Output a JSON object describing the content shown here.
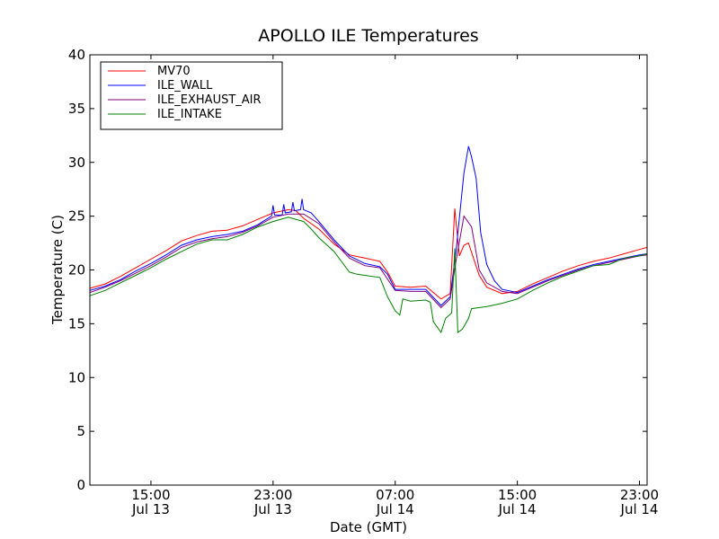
{
  "chart_data": {
    "type": "line",
    "title": "APOLLO ILE Temperatures",
    "xlabel": "Date (GMT)",
    "ylabel": "Temperature (C)",
    "xlim": [
      11,
      47.5
    ],
    "ylim": [
      0,
      40
    ],
    "yticks": [
      0,
      5,
      10,
      15,
      20,
      25,
      30,
      35,
      40
    ],
    "xticks": [
      {
        "value": 15,
        "line1": "15:00",
        "line2": "Jul 13"
      },
      {
        "value": 23,
        "line1": "23:00",
        "line2": "Jul 13"
      },
      {
        "value": 31,
        "line1": "07:00",
        "line2": "Jul 14"
      },
      {
        "value": 39,
        "line1": "15:00",
        "line2": "Jul 14"
      },
      {
        "value": 47,
        "line1": "23:00",
        "line2": "Jul 14"
      }
    ],
    "legend_position": "top-left",
    "series": [
      {
        "name": "MV70",
        "color": "#ff0000",
        "points": [
          [
            11,
            18.3
          ],
          [
            12,
            18.7
          ],
          [
            13,
            19.4
          ],
          [
            14,
            20.2
          ],
          [
            15,
            21
          ],
          [
            16,
            21.8
          ],
          [
            17,
            22.7
          ],
          [
            18,
            23.2
          ],
          [
            19,
            23.6
          ],
          [
            20,
            23.7
          ],
          [
            21,
            24.1
          ],
          [
            22,
            24.7
          ],
          [
            23,
            25.3
          ],
          [
            24,
            25.6
          ],
          [
            24.5,
            25.5
          ],
          [
            25,
            24.8
          ],
          [
            26,
            23.8
          ],
          [
            27,
            22.4
          ],
          [
            28,
            21.4
          ],
          [
            29,
            21.1
          ],
          [
            30,
            20.8
          ],
          [
            30.5,
            19.8
          ],
          [
            31,
            18.5
          ],
          [
            32,
            18.4
          ],
          [
            33,
            18.5
          ],
          [
            34,
            17.3
          ],
          [
            34.6,
            17.8
          ],
          [
            34.9,
            25.7
          ],
          [
            35.2,
            21.3
          ],
          [
            35.5,
            22.3
          ],
          [
            35.8,
            22.5
          ],
          [
            36.1,
            21.2
          ],
          [
            36.5,
            19.5
          ],
          [
            37,
            18.4
          ],
          [
            38,
            17.8
          ],
          [
            39,
            18
          ],
          [
            40,
            18.7
          ],
          [
            41,
            19.3
          ],
          [
            42,
            19.9
          ],
          [
            43,
            20.4
          ],
          [
            44,
            20.8
          ],
          [
            45,
            21.1
          ],
          [
            46,
            21.5
          ],
          [
            47,
            21.9
          ],
          [
            47.5,
            22.1
          ]
        ]
      },
      {
        "name": "ILE_WALL",
        "color": "#0000ff",
        "points": [
          [
            11,
            18.1
          ],
          [
            12,
            18.5
          ],
          [
            13,
            19.1
          ],
          [
            14,
            19.9
          ],
          [
            15,
            20.6
          ],
          [
            16,
            21.4
          ],
          [
            17,
            22.3
          ],
          [
            18,
            22.8
          ],
          [
            19,
            23.1
          ],
          [
            20,
            23.3
          ],
          [
            21,
            23.6
          ],
          [
            22,
            24.2
          ],
          [
            22.9,
            25
          ],
          [
            23,
            26
          ],
          [
            23.1,
            25.1
          ],
          [
            23.6,
            25.1
          ],
          [
            23.7,
            26.1
          ],
          [
            23.8,
            25.3
          ],
          [
            24.2,
            25.4
          ],
          [
            24.3,
            26.3
          ],
          [
            24.4,
            25.5
          ],
          [
            24.8,
            25.6
          ],
          [
            24.9,
            26.6
          ],
          [
            25,
            25.6
          ],
          [
            25.5,
            25.3
          ],
          [
            26,
            24.5
          ],
          [
            27,
            22.8
          ],
          [
            28,
            21.3
          ],
          [
            29,
            20.6
          ],
          [
            30,
            20.3
          ],
          [
            30.5,
            19.6
          ],
          [
            31,
            18.2
          ],
          [
            32,
            18.2
          ],
          [
            33,
            18.2
          ],
          [
            34,
            16.7
          ],
          [
            34.6,
            17.5
          ],
          [
            35,
            22
          ],
          [
            35.5,
            29
          ],
          [
            35.8,
            31.5
          ],
          [
            36,
            30.5
          ],
          [
            36.3,
            28.5
          ],
          [
            36.6,
            23.5
          ],
          [
            37,
            20.5
          ],
          [
            37.5,
            19
          ],
          [
            38,
            18.2
          ],
          [
            39,
            17.9
          ],
          [
            40,
            18.5
          ],
          [
            41,
            19.1
          ],
          [
            42,
            19.6
          ],
          [
            43,
            20.1
          ],
          [
            44,
            20.5
          ],
          [
            45,
            20.8
          ],
          [
            46,
            21.1
          ],
          [
            47,
            21.4
          ],
          [
            47.5,
            21.5
          ]
        ]
      },
      {
        "name": "ILE_EXHAUST_AIR",
        "color": "#800080",
        "points": [
          [
            11,
            17.9
          ],
          [
            12,
            18.4
          ],
          [
            13,
            19
          ],
          [
            14,
            19.7
          ],
          [
            15,
            20.4
          ],
          [
            16,
            21.2
          ],
          [
            17,
            22.1
          ],
          [
            18,
            22.6
          ],
          [
            19,
            22.9
          ],
          [
            20,
            23.1
          ],
          [
            21,
            23.5
          ],
          [
            22,
            24.1
          ],
          [
            23,
            24.9
          ],
          [
            24,
            25.2
          ],
          [
            25,
            25.2
          ],
          [
            26,
            24.3
          ],
          [
            27,
            22.6
          ],
          [
            28,
            21.1
          ],
          [
            29,
            20.4
          ],
          [
            30,
            20.2
          ],
          [
            31,
            18.1
          ],
          [
            32,
            18
          ],
          [
            33,
            18
          ],
          [
            34,
            16.5
          ],
          [
            34.6,
            17.3
          ],
          [
            35,
            21
          ],
          [
            35.5,
            25
          ],
          [
            36,
            24
          ],
          [
            36.5,
            20
          ],
          [
            37,
            18.8
          ],
          [
            38,
            18
          ],
          [
            39,
            17.8
          ],
          [
            40,
            18.4
          ],
          [
            41,
            19
          ],
          [
            42,
            19.5
          ],
          [
            43,
            20
          ],
          [
            44,
            20.4
          ],
          [
            45,
            20.7
          ],
          [
            46,
            21
          ],
          [
            47,
            21.3
          ],
          [
            47.5,
            21.4
          ]
        ]
      },
      {
        "name": "ILE_INTAKE",
        "color": "#008000",
        "points": [
          [
            11,
            17.6
          ],
          [
            12,
            18.1
          ],
          [
            13,
            18.8
          ],
          [
            14,
            19.5
          ],
          [
            15,
            20.2
          ],
          [
            16,
            21
          ],
          [
            17,
            21.7
          ],
          [
            18,
            22.4
          ],
          [
            19,
            22.8
          ],
          [
            20,
            22.8
          ],
          [
            21,
            23.3
          ],
          [
            22,
            24
          ],
          [
            23,
            24.5
          ],
          [
            24,
            24.9
          ],
          [
            25,
            24.5
          ],
          [
            25.5,
            23.8
          ],
          [
            26,
            23
          ],
          [
            27,
            21.7
          ],
          [
            28,
            19.8
          ],
          [
            28.5,
            19.6
          ],
          [
            29,
            19.5
          ],
          [
            30,
            19.3
          ],
          [
            30.5,
            17.5
          ],
          [
            31,
            16.2
          ],
          [
            31.3,
            15.8
          ],
          [
            31.5,
            17.3
          ],
          [
            32,
            17.1
          ],
          [
            33,
            17.2
          ],
          [
            33.3,
            17
          ],
          [
            33.5,
            15.2
          ],
          [
            34,
            14.2
          ],
          [
            34.3,
            15.5
          ],
          [
            34.7,
            16
          ],
          [
            34.9,
            22
          ],
          [
            35.1,
            14.2
          ],
          [
            35.4,
            14.5
          ],
          [
            35.8,
            15.5
          ],
          [
            36,
            16.4
          ],
          [
            37,
            16.6
          ],
          [
            38,
            16.9
          ],
          [
            39,
            17.3
          ],
          [
            40,
            18.1
          ],
          [
            41,
            18.8
          ],
          [
            42,
            19.4
          ],
          [
            43,
            19.9
          ],
          [
            44,
            20.4
          ],
          [
            45,
            20.5
          ],
          [
            46,
            21.1
          ],
          [
            47,
            21.3
          ],
          [
            47.5,
            21.5
          ]
        ]
      }
    ]
  }
}
